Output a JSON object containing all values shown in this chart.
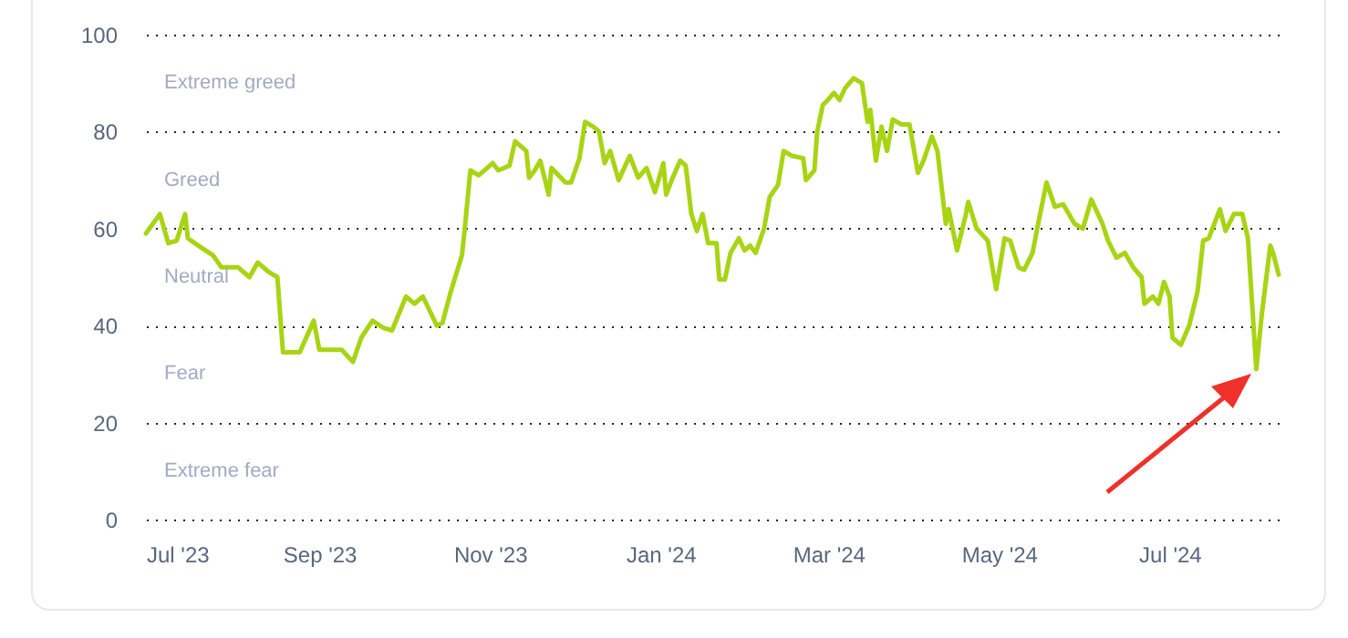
{
  "chart_data": {
    "type": "line",
    "grid": "y",
    "marker": "none",
    "line_style": "solid",
    "xlim": [
      "2023-07-01",
      "2024-08-09"
    ],
    "xticks": [
      {
        "value": "2023-07-01",
        "label": "Jul '23"
      },
      {
        "value": "2023-09-01",
        "label": "Sep '23"
      },
      {
        "value": "2023-11-01",
        "label": "Nov '23"
      },
      {
        "value": "2024-01-01",
        "label": "Jan '24"
      },
      {
        "value": "2024-03-01",
        "label": "Mar '24"
      },
      {
        "value": "2024-05-01",
        "label": "May '24"
      },
      {
        "value": "2024-07-01",
        "label": "Jul '24"
      }
    ],
    "ylim": [
      0,
      100
    ],
    "yticks": [
      0,
      20,
      40,
      60,
      80,
      100
    ],
    "annotations": [
      "Extreme greed",
      "Greed",
      "Neutral",
      "Fear",
      "Extreme fear"
    ],
    "series": [
      {
        "color": "#a8d414",
        "x": [
          "2023-07-01",
          "2023-07-06",
          "2023-07-09",
          "2023-07-12",
          "2023-07-15",
          "2023-07-16",
          "2023-07-21",
          "2023-07-25",
          "2023-07-28",
          "2023-08-03",
          "2023-08-07",
          "2023-08-10",
          "2023-08-14",
          "2023-08-17",
          "2023-08-19",
          "2023-08-25",
          "2023-08-30",
          "2023-09-01",
          "2023-09-09",
          "2023-09-13",
          "2023-09-16",
          "2023-09-20",
          "2023-09-24",
          "2023-09-27",
          "2023-10-02",
          "2023-10-05",
          "2023-10-08",
          "2023-10-13",
          "2023-10-15",
          "2023-10-18",
          "2023-10-22",
          "2023-10-23",
          "2023-10-25",
          "2023-10-28",
          "2023-11-02",
          "2023-11-04",
          "2023-11-08",
          "2023-11-10",
          "2023-11-14",
          "2023-11-15",
          "2023-11-17",
          "2023-11-19",
          "2023-11-22",
          "2023-11-23",
          "2023-11-28",
          "2023-11-30",
          "2023-12-03",
          "2023-12-05",
          "2023-12-08",
          "2023-12-10",
          "2023-12-12",
          "2023-12-14",
          "2023-12-17",
          "2023-12-21",
          "2023-12-24",
          "2023-12-27",
          "2023-12-30",
          "2024-01-02",
          "2024-01-03",
          "2024-01-05",
          "2024-01-08",
          "2024-01-10",
          "2024-01-12",
          "2024-01-14",
          "2024-01-16",
          "2024-01-18",
          "2024-01-21",
          "2024-01-22",
          "2024-01-24",
          "2024-01-26",
          "2024-01-29",
          "2024-01-31",
          "2024-02-02",
          "2024-02-04",
          "2024-02-07",
          "2024-02-09",
          "2024-02-12",
          "2024-02-14",
          "2024-02-17",
          "2024-02-21",
          "2024-02-22",
          "2024-02-25",
          "2024-02-26",
          "2024-02-28",
          "2024-02-29",
          "2024-03-03",
          "2024-03-05",
          "2024-03-07",
          "2024-03-10",
          "2024-03-13",
          "2024-03-15",
          "2024-03-16",
          "2024-03-18",
          "2024-03-20",
          "2024-03-22",
          "2024-03-24",
          "2024-03-27",
          "2024-03-30",
          "2024-04-02",
          "2024-04-04",
          "2024-04-07",
          "2024-04-09",
          "2024-04-12",
          "2024-04-13",
          "2024-04-16",
          "2024-04-19",
          "2024-04-20",
          "2024-04-23",
          "2024-04-27",
          "2024-04-30",
          "2024-05-03",
          "2024-05-05",
          "2024-05-08",
          "2024-05-10",
          "2024-05-13",
          "2024-05-15",
          "2024-05-18",
          "2024-05-21",
          "2024-05-24",
          "2024-05-28",
          "2024-05-31",
          "2024-06-03",
          "2024-06-07",
          "2024-06-09",
          "2024-06-12",
          "2024-06-15",
          "2024-06-18",
          "2024-06-21",
          "2024-06-22",
          "2024-06-25",
          "2024-06-27",
          "2024-06-29",
          "2024-07-01",
          "2024-07-02",
          "2024-07-05",
          "2024-07-08",
          "2024-07-11",
          "2024-07-13",
          "2024-07-15",
          "2024-07-19",
          "2024-07-21",
          "2024-07-24",
          "2024-07-27",
          "2024-07-29",
          "2024-07-30",
          "2024-08-01",
          "2024-08-03",
          "2024-08-06",
          "2024-08-07",
          "2024-08-09"
        ],
        "values": [
          59,
          63,
          57,
          57.5,
          63,
          58,
          56,
          54.5,
          52,
          52,
          50,
          53,
          51,
          50,
          34.5,
          34.5,
          41,
          35,
          35,
          32.5,
          37.5,
          41,
          39.5,
          39,
          46,
          44.5,
          46,
          40,
          40.5,
          47,
          54.5,
          60,
          72,
          71,
          73.5,
          72,
          73,
          78,
          76,
          70.5,
          72,
          74,
          67,
          72.5,
          69.5,
          69.5,
          74.5,
          82,
          81,
          80,
          73.5,
          76,
          70,
          75,
          70.5,
          72.5,
          67.5,
          73.5,
          67,
          70,
          74,
          73,
          63,
          59.5,
          63,
          57,
          57,
          49.5,
          49.5,
          55,
          58,
          55.5,
          56.5,
          55,
          60,
          66.5,
          69,
          76,
          75,
          74.5,
          70,
          72,
          80,
          85.5,
          86,
          88,
          86.5,
          89,
          91,
          90,
          82,
          84.5,
          74,
          81,
          76,
          82.5,
          81.5,
          81.5,
          71.5,
          74,
          79,
          76,
          61,
          64,
          55.5,
          62.5,
          65.5,
          60,
          57.5,
          47.5,
          58,
          57.5,
          52,
          51.5,
          55,
          61,
          69.5,
          64.5,
          65,
          61,
          60,
          66,
          61,
          57.5,
          54,
          55,
          52,
          50,
          44.5,
          46,
          44.5,
          49,
          46,
          37.5,
          36,
          40,
          47,
          57.5,
          58,
          64,
          59.5,
          63,
          63,
          58,
          49,
          31,
          42.5,
          56.5,
          55,
          50.5
        ]
      }
    ]
  }
}
